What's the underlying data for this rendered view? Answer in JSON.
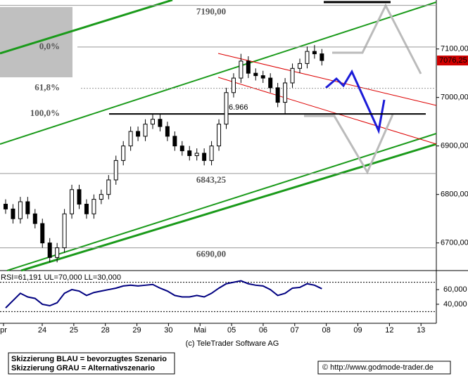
{
  "chart_data": {
    "type": "candlestick",
    "ylim": [
      6643,
      7201
    ],
    "yticks": [
      {
        "value": 6700,
        "label": "6700,00"
      },
      {
        "value": 6800,
        "label": "6800,00"
      },
      {
        "value": 6900,
        "label": "6900,00"
      },
      {
        "value": 7000,
        "label": "7000,00"
      },
      {
        "value": 7100,
        "label": "7100,00"
      }
    ],
    "levels": [
      {
        "value": 7190,
        "label": "7190,00"
      },
      {
        "value": 6843.25,
        "label": "6843,25"
      },
      {
        "value": 6690,
        "label": "6690,00"
      }
    ],
    "fib_levels": [
      {
        "value": 7104,
        "label": "0,0%"
      },
      {
        "value": 7019,
        "label": "61,8%"
      },
      {
        "value": 6966,
        "label": "100,0%"
      }
    ],
    "support_label": {
      "value": 6966,
      "label": "6.966"
    },
    "last": {
      "value": 7076.25,
      "label": "7076,25"
    },
    "x_labels": [
      "pr",
      "24",
      "25",
      "28",
      "29",
      "30",
      "Mai",
      "05",
      "06",
      "07",
      "08",
      "09",
      "12",
      "13"
    ],
    "ohlc": [
      [
        6780,
        6790,
        6760,
        6770
      ],
      [
        6770,
        6780,
        6740,
        6750
      ],
      [
        6750,
        6795,
        6740,
        6785
      ],
      [
        6785,
        6795,
        6750,
        6760
      ],
      [
        6760,
        6770,
        6730,
        6740
      ],
      [
        6740,
        6750,
        6690,
        6700
      ],
      [
        6700,
        6710,
        6660,
        6670
      ],
      [
        6670,
        6700,
        6660,
        6690
      ],
      [
        6690,
        6770,
        6680,
        6760
      ],
      [
        6760,
        6820,
        6750,
        6810
      ],
      [
        6810,
        6820,
        6770,
        6780
      ],
      [
        6780,
        6790,
        6750,
        6760
      ],
      [
        6760,
        6800,
        6750,
        6790
      ],
      [
        6790,
        6810,
        6780,
        6800
      ],
      [
        6800,
        6840,
        6790,
        6830
      ],
      [
        6830,
        6880,
        6820,
        6870
      ],
      [
        6870,
        6910,
        6860,
        6900
      ],
      [
        6900,
        6940,
        6890,
        6930
      ],
      [
        6930,
        6940,
        6910,
        6920
      ],
      [
        6920,
        6955,
        6910,
        6945
      ],
      [
        6945,
        6965,
        6935,
        6955
      ],
      [
        6955,
        6965,
        6930,
        6940
      ],
      [
        6940,
        6950,
        6910,
        6920
      ],
      [
        6920,
        6930,
        6890,
        6900
      ],
      [
        6900,
        6910,
        6880,
        6890
      ],
      [
        6890,
        6900,
        6870,
        6880
      ],
      [
        6880,
        6895,
        6870,
        6885
      ],
      [
        6885,
        6895,
        6860,
        6870
      ],
      [
        6870,
        6910,
        6860,
        6900
      ],
      [
        6900,
        6955,
        6890,
        6945
      ],
      [
        6945,
        7020,
        6935,
        7010
      ],
      [
        7010,
        7050,
        7000,
        7040
      ],
      [
        7040,
        7090,
        7030,
        7075
      ],
      [
        7075,
        7085,
        7040,
        7050
      ],
      [
        7050,
        7060,
        7035,
        7045
      ],
      [
        7045,
        7055,
        7030,
        7040
      ],
      [
        7040,
        7050,
        7010,
        7020
      ],
      [
        7020,
        7030,
        6980,
        6990
      ],
      [
        6990,
        7040,
        6965,
        7030
      ],
      [
        7030,
        7070,
        7020,
        7060
      ],
      [
        7060,
        7080,
        7050,
        7070
      ],
      [
        7070,
        7105,
        7060,
        7095
      ],
      [
        7095,
        7108,
        7080,
        7090
      ],
      [
        7090,
        7100,
        7066,
        7076.25
      ]
    ],
    "rsi": {
      "label": "RSI=61,191 UL=70,000 LL=30,000",
      "color": "#000080",
      "ylim": [
        15,
        85
      ],
      "ul": 70,
      "ll": 30,
      "yticks": [
        {
          "value": 40,
          "label": "40,000"
        },
        {
          "value": 60,
          "label": "60,000"
        }
      ],
      "values": [
        35,
        45,
        55,
        50,
        48,
        40,
        38,
        42,
        55,
        60,
        58,
        52,
        56,
        58,
        60,
        62,
        65,
        66,
        65,
        66,
        67,
        62,
        58,
        52,
        50,
        50,
        52,
        50,
        55,
        62,
        68,
        70,
        72,
        68,
        66,
        65,
        60,
        52,
        55,
        62,
        63,
        68,
        66,
        61.191
      ]
    },
    "copyright": "(c) TeleTrader Software AG",
    "notes": [
      "Skizzierung BLAU = bevorzugtes Szenario",
      "Skizzierung GRAU = Alternativszenario"
    ],
    "url": "© http://www.godmode-trader.de"
  }
}
